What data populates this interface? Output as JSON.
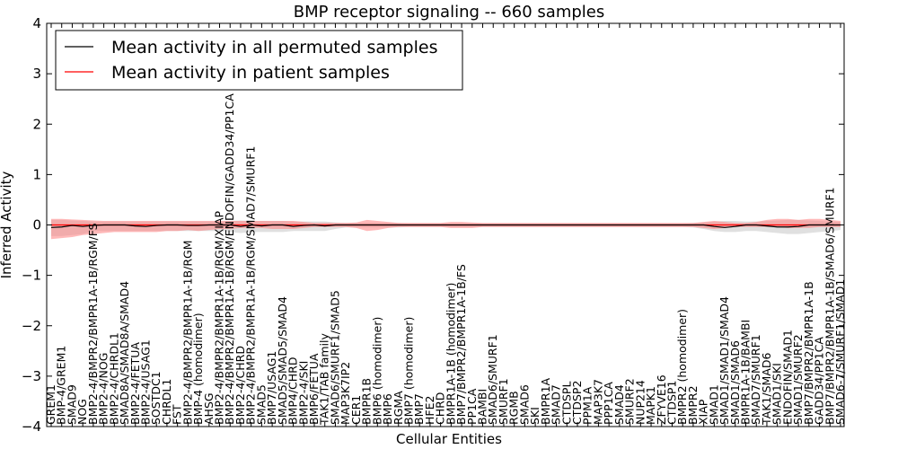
{
  "chart_data": {
    "type": "line",
    "title": "BMP receptor signaling -- 660 samples",
    "xlabel": "Cellular Entities",
    "ylabel": "Inferred Activity",
    "ylim": [
      -4,
      4
    ],
    "yticks": [
      -4,
      -3,
      -2,
      -1,
      0,
      1,
      2,
      3,
      4
    ],
    "legend_position": "top-left",
    "categories": [
      "GREM1",
      "BMP-4/GREM1",
      "SMAD9",
      "NOG",
      "BMP2-4/BMPR2/BMPR1A-1B/RGM/FS",
      "BMP2-4/NOG",
      "BMP2-4/CHRDL1",
      "SMAD8A/SMAD8A/SMAD4",
      "BMP2-4/FETUA",
      "BMP2-4/USAG1",
      "SOSTDC1",
      "CHRDL1",
      "FST",
      "BMP2-4/BMPR2/BMPR1A-1B/RGM",
      "BMP-4 (homodimer)",
      "AHSG",
      "BMP2-4/BMPR2/BMPR1A-1B/RGM/XIAP",
      "BMP2-4/BMPR2/BMPR1A-1B/RGM/ENDOFIN/GADD34/PP1CA",
      "BMP2-4/CHRD",
      "BMP2-4/BMPR2/BMPR1A-1B/RGM/SMAD7/SMURF1",
      "SMAD5",
      "BMP7/USAG1",
      "SMAD5/SMAD5/SMAD4",
      "BMP4/CHRD",
      "BMP2-4/SKI",
      "BMP6/FETUA",
      "TAK1/TAB family",
      "SMAD6/SMURF1/SMAD5",
      "MAP3K7IP2",
      "CER1",
      "BMPR1B",
      "BMP6 (homodimer)",
      "BMP6",
      "RGMA",
      "BMP7 (homodimer)",
      "BMP7",
      "HFE2",
      "CHRD",
      "BMPR1A-1B (homodimer)",
      "BMP7/BMPR2/BMPR1A-1B/FS",
      "PP1CA",
      "BAMBI",
      "SMAD6/SMURF1",
      "SMURF1",
      "RGMB",
      "SMAD6",
      "SKI",
      "BMPR1A",
      "SMAD7",
      "CTDSPL",
      "CTDSP2",
      "PPM1A",
      "MAP3K7",
      "PPP1CA",
      "SMAD4",
      "SMURF2",
      "NUP214",
      "MAPK1",
      "ZFYVE16",
      "CTDSP1",
      "BMPR2 (homodimer)",
      "BMPR2",
      "XIAP",
      "SMAD1",
      "SMAD1/SMAD1/SMAD4",
      "SMAD1/SMAD6",
      "BMPR1A-1B/BAMBI",
      "SMAD7/SMURF1",
      "TAK1/SMAD6",
      "SMAD1/SKI",
      "ENDOFIN/SMAD1",
      "SMAD1/SMURF2",
      "BMP7/BMPR2/BMPR1A-1B",
      "GADD34/PP1CA",
      "BMP7/BMPR2/BMPR1A-1B/SMAD6/SMURF1",
      "SMAD6-7/SMURF1/SMAD1"
    ],
    "series": [
      {
        "name": "Mean activity in all permuted samples",
        "color": "#000000",
        "values": [
          -0.05,
          -0.04,
          -0.01,
          -0.03,
          -0.01,
          0.0,
          0.0,
          0.0,
          -0.02,
          -0.03,
          -0.01,
          0.0,
          0.0,
          -0.01,
          -0.01,
          0.0,
          0.0,
          0.0,
          -0.03,
          0.0,
          -0.02,
          0.0,
          0.0,
          -0.03,
          -0.01,
          0.0,
          -0.02,
          0.0,
          0.0,
          0.0,
          0.0,
          0.0,
          0.0,
          0.0,
          0.0,
          0.0,
          0.0,
          0.0,
          0.0,
          0.0,
          0.0,
          0.0,
          0.0,
          0.0,
          0.0,
          0.0,
          0.0,
          0.0,
          0.0,
          0.0,
          0.0,
          0.0,
          0.0,
          0.0,
          0.0,
          0.0,
          0.0,
          0.0,
          0.0,
          0.0,
          0.0,
          0.0,
          0.0,
          -0.03,
          -0.05,
          -0.03,
          0.0,
          0.0,
          -0.02,
          -0.04,
          -0.04,
          -0.03,
          0.0,
          0.0,
          0.0,
          0.0
        ]
      },
      {
        "name": "Mean activity in patient samples",
        "color": "#ff0000",
        "values": [
          0.0,
          0.0,
          0.0,
          0.0,
          0.0,
          0.0,
          0.0,
          0.0,
          0.0,
          0.0,
          0.0,
          0.0,
          0.0,
          0.0,
          0.0,
          0.0,
          0.0,
          0.0,
          0.0,
          0.0,
          0.0,
          0.0,
          0.0,
          0.0,
          0.0,
          0.0,
          0.0,
          0.0,
          0.0,
          0.0,
          0.0,
          0.0,
          0.0,
          0.0,
          0.0,
          0.0,
          0.0,
          0.0,
          0.0,
          0.0,
          0.0,
          0.0,
          0.0,
          0.0,
          0.0,
          0.0,
          0.0,
          0.0,
          0.0,
          0.0,
          0.0,
          0.0,
          0.0,
          0.0,
          0.0,
          0.0,
          0.0,
          0.0,
          0.0,
          0.0,
          0.0,
          0.0,
          0.0,
          0.0,
          0.0,
          0.0,
          0.0,
          0.0,
          0.0,
          0.0,
          0.0,
          0.0,
          0.0,
          0.0,
          0.0,
          0.0
        ]
      }
    ],
    "bands": [
      {
        "name": "permuted-spread",
        "color": "#bbbbbb",
        "lower": [
          -0.22,
          -0.22,
          -0.2,
          -0.18,
          -0.12,
          -0.12,
          -0.12,
          -0.12,
          -0.12,
          -0.12,
          -0.12,
          -0.12,
          -0.12,
          -0.12,
          -0.12,
          -0.12,
          -0.12,
          -0.14,
          -0.16,
          -0.14,
          -0.14,
          -0.14,
          -0.14,
          -0.12,
          -0.12,
          -0.12,
          -0.12,
          -0.08,
          -0.05,
          -0.05,
          -0.05,
          -0.05,
          -0.05,
          -0.05,
          -0.04,
          -0.04,
          -0.04,
          -0.04,
          -0.04,
          -0.04,
          -0.04,
          -0.04,
          -0.04,
          -0.04,
          -0.04,
          -0.04,
          -0.04,
          -0.04,
          -0.04,
          -0.04,
          -0.04,
          -0.04,
          -0.04,
          -0.04,
          -0.04,
          -0.04,
          -0.04,
          -0.04,
          -0.04,
          -0.04,
          -0.04,
          -0.05,
          -0.08,
          -0.12,
          -0.14,
          -0.14,
          -0.12,
          -0.12,
          -0.14,
          -0.16,
          -0.18,
          -0.18,
          -0.16,
          -0.14,
          -0.12,
          -0.1
        ],
        "upper": [
          0.1,
          0.1,
          0.09,
          0.08,
          0.07,
          0.07,
          0.07,
          0.07,
          0.07,
          0.07,
          0.07,
          0.07,
          0.07,
          0.07,
          0.07,
          0.07,
          0.07,
          0.08,
          0.09,
          0.08,
          0.08,
          0.08,
          0.08,
          0.07,
          0.07,
          0.07,
          0.07,
          0.05,
          0.04,
          0.04,
          0.04,
          0.04,
          0.04,
          0.04,
          0.03,
          0.03,
          0.03,
          0.03,
          0.03,
          0.03,
          0.03,
          0.03,
          0.03,
          0.03,
          0.03,
          0.03,
          0.03,
          0.03,
          0.03,
          0.03,
          0.03,
          0.03,
          0.03,
          0.03,
          0.03,
          0.03,
          0.03,
          0.03,
          0.03,
          0.03,
          0.03,
          0.04,
          0.05,
          0.07,
          0.08,
          0.08,
          0.07,
          0.07,
          0.08,
          0.09,
          0.1,
          0.1,
          0.09,
          0.08,
          0.07,
          0.06
        ]
      },
      {
        "name": "patient-spread",
        "color": "#ff8080",
        "lower": [
          -0.28,
          -0.26,
          -0.24,
          -0.2,
          -0.18,
          -0.16,
          -0.14,
          -0.14,
          -0.14,
          -0.14,
          -0.14,
          -0.12,
          -0.12,
          -0.1,
          -0.12,
          -0.1,
          -0.08,
          -0.08,
          -0.06,
          -0.06,
          -0.06,
          -0.08,
          -0.08,
          -0.08,
          -0.06,
          -0.04,
          -0.04,
          -0.04,
          -0.04,
          -0.06,
          -0.12,
          -0.1,
          -0.06,
          -0.04,
          -0.04,
          -0.04,
          -0.04,
          -0.04,
          -0.06,
          -0.06,
          -0.06,
          -0.04,
          -0.04,
          -0.04,
          -0.04,
          -0.04,
          -0.04,
          -0.04,
          -0.04,
          -0.04,
          -0.04,
          -0.04,
          -0.04,
          -0.04,
          -0.04,
          -0.04,
          -0.04,
          -0.04,
          -0.04,
          -0.04,
          -0.04,
          -0.04,
          -0.06,
          -0.08,
          -0.06,
          -0.04,
          -0.04,
          -0.04,
          -0.04,
          -0.04,
          -0.06,
          -0.06,
          -0.06,
          -0.04,
          -0.04,
          -0.04
        ],
        "upper": [
          0.12,
          0.12,
          0.11,
          0.1,
          0.09,
          0.08,
          0.08,
          0.08,
          0.08,
          0.08,
          0.08,
          0.08,
          0.08,
          0.08,
          0.08,
          0.08,
          0.08,
          0.08,
          0.08,
          0.08,
          0.08,
          0.08,
          0.08,
          0.08,
          0.06,
          0.04,
          0.04,
          0.04,
          0.04,
          0.05,
          0.1,
          0.08,
          0.06,
          0.04,
          0.04,
          0.04,
          0.04,
          0.04,
          0.06,
          0.06,
          0.05,
          0.04,
          0.04,
          0.04,
          0.04,
          0.04,
          0.04,
          0.04,
          0.04,
          0.04,
          0.04,
          0.04,
          0.04,
          0.04,
          0.04,
          0.04,
          0.04,
          0.04,
          0.04,
          0.04,
          0.04,
          0.04,
          0.06,
          0.08,
          0.06,
          0.04,
          0.04,
          0.06,
          0.1,
          0.12,
          0.12,
          0.1,
          0.12,
          0.12,
          0.1,
          0.08
        ]
      }
    ]
  }
}
